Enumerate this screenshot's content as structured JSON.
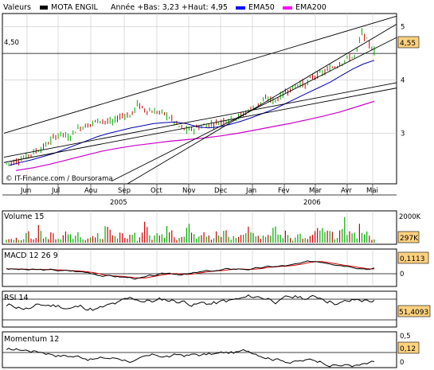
{
  "header": {
    "valeurs_label": "Valeurs",
    "instrument": "MOTA ENGIL",
    "range_text": "Année +Bas: 3,23 +Haut: 4,95",
    "ema50_label": "EMA50",
    "ema200_label": "EMA200"
  },
  "colors": {
    "price_up": "#00aa00",
    "price_down": "#cc0000",
    "ema50": "#0000aa",
    "ema200": "#cc00cc",
    "panel_bg": "#ffffff",
    "grid": "#c8c8c8",
    "value_box": "#ffd27f",
    "ema50_swatch": "#0000ff",
    "ema200_swatch": "#ff00ff",
    "instrument_swatch": "#000000"
  },
  "copyright": "© IT-Finance.com / Boursorama",
  "chart_data": [
    {
      "type": "candlestick",
      "panel": "price",
      "x_ticks": [
        "Jun",
        "Jul",
        "Aou",
        "Sep",
        "Oct",
        "Nov",
        "Dec",
        "Jan",
        "Fev",
        "Mar",
        "Avr",
        "Mai"
      ],
      "years": [
        "2005",
        "2006"
      ],
      "y_ticks": [
        "3",
        "4",
        "5"
      ],
      "y_range": [
        2.05,
        5.25
      ],
      "last_value": "4,55",
      "horizontal_level_label": "4,50",
      "horizontal_level": 4.5,
      "price": [
        2.43,
        2.45,
        2.5,
        2.55,
        2.62,
        2.68,
        2.74,
        2.85,
        2.95,
        3.0,
        2.9,
        3.05,
        3.12,
        3.15,
        3.2,
        3.25,
        3.22,
        3.2,
        3.3,
        3.35,
        3.32,
        3.55,
        3.45,
        3.42,
        3.4,
        3.38,
        3.32,
        3.2,
        3.1,
        3.05,
        3.08,
        3.12,
        3.15,
        3.18,
        3.2,
        3.25,
        3.28,
        3.3,
        3.35,
        3.45,
        3.5,
        3.6,
        3.65,
        3.6,
        3.7,
        3.8,
        3.85,
        3.95,
        3.9,
        4.05,
        4.1,
        4.15,
        4.22,
        4.28,
        4.35,
        4.42,
        4.45,
        4.9,
        4.7,
        4.55
      ],
      "ema50": [
        2.4,
        2.45,
        2.5,
        2.56,
        2.62,
        2.7,
        2.78,
        2.86,
        2.94,
        3.0,
        3.05,
        3.1,
        3.14,
        3.18,
        3.2,
        3.21,
        3.18,
        3.12,
        3.1,
        3.12,
        3.17,
        3.23,
        3.3,
        3.38,
        3.46,
        3.56,
        3.66,
        3.76,
        3.86,
        3.96,
        4.08,
        4.2,
        4.3,
        4.37
      ],
      "ema200": [
        2.3,
        2.35,
        2.42,
        2.5,
        2.58,
        2.66,
        2.72,
        2.77,
        2.81,
        2.85,
        2.88,
        2.91,
        2.95,
        3.0,
        3.06,
        3.12,
        3.18,
        3.25,
        3.32,
        3.4,
        3.5,
        3.6
      ]
    },
    {
      "type": "bar",
      "panel": "volume",
      "title": "Volume 15",
      "y_ticks": [
        "2000K"
      ],
      "last_value": "297K",
      "volume_profile": [
        300,
        420,
        380,
        900,
        520,
        1600,
        480,
        700,
        350,
        1100,
        640,
        900,
        460,
        380,
        820,
        300,
        1200,
        540,
        700,
        420,
        800,
        360,
        1600,
        500,
        900,
        650,
        1400,
        480,
        600,
        1900,
        700,
        520,
        1000,
        430,
        760,
        1200,
        500,
        880,
        640,
        1700,
        700,
        520,
        900,
        1500,
        600,
        800,
        400,
        1200,
        700,
        560,
        980,
        1400,
        800,
        620,
        2000,
        900,
        700,
        1500,
        800,
        297
      ]
    },
    {
      "type": "line",
      "panel": "macd",
      "title": "MACD 12 26 9",
      "y_ticks": [
        "0"
      ],
      "last_value": "0,1113"
    },
    {
      "type": "line",
      "panel": "rsi",
      "title": "RSI 14",
      "last_value": "51,4093"
    },
    {
      "type": "line",
      "panel": "momentum",
      "title": "Momentum 12",
      "y_ticks": [
        "0,5",
        "0"
      ],
      "last_value": "0,12"
    }
  ]
}
